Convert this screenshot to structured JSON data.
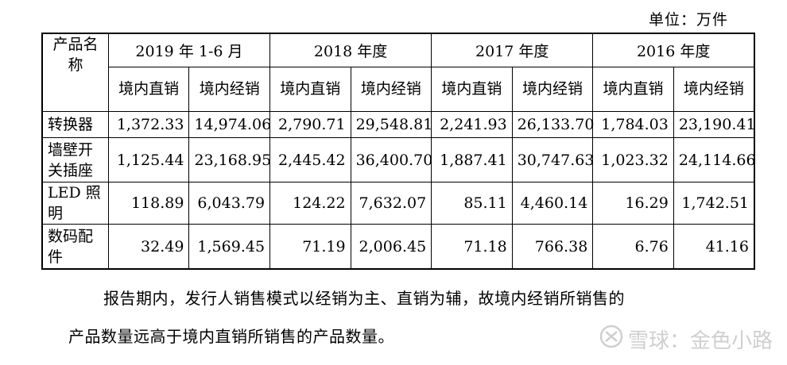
{
  "unit_note": "单位：万件",
  "table": {
    "product_header": "产品名称",
    "years": [
      "2019 年 1-6 月",
      "2018 年度",
      "2017 年度",
      "2016 年度"
    ],
    "sub_headers": [
      "境内直销",
      "境内经销"
    ],
    "rows": [
      {
        "product": "转换器",
        "values": [
          "1,372.33",
          "14,974.06",
          "2,790.71",
          "29,548.81",
          "2,241.93",
          "26,133.70",
          "1,784.03",
          "23,190.41"
        ]
      },
      {
        "product": "墙壁开关插座",
        "values": [
          "1,125.44",
          "23,168.95",
          "2,445.42",
          "36,400.70",
          "1,887.41",
          "30,747.63",
          "1,023.32",
          "24,114.66"
        ]
      },
      {
        "product": "LED 照明",
        "values": [
          "118.89",
          "6,043.79",
          "124.22",
          "7,632.07",
          "85.11",
          "4,460.14",
          "16.29",
          "1,742.51"
        ]
      },
      {
        "product": "数码配件",
        "values": [
          "32.49",
          "1,569.45",
          "71.19",
          "2,006.45",
          "71.18",
          "766.38",
          "6.76",
          "41.16"
        ]
      }
    ]
  },
  "paragraph": {
    "line1": "报告期内，发行人销售模式以经销为主、直销为辅，故境内经销所销售的",
    "line2": "产品数量远高于境内直销所销售的产品数量。"
  },
  "watermark": {
    "icon": "snowball-logo-icon",
    "text": "雪球：金色小路"
  }
}
